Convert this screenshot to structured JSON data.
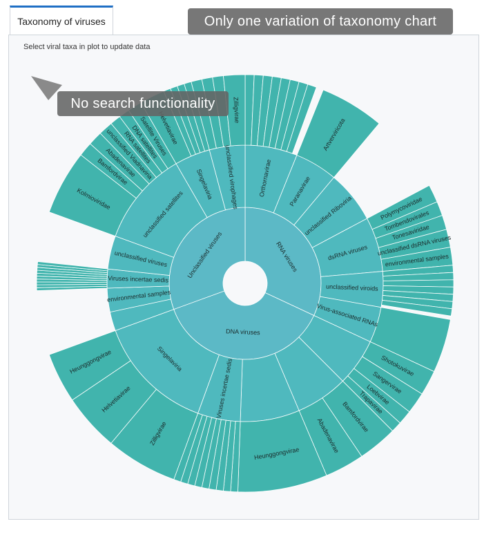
{
  "tab": "Taxonomy of viruses",
  "instruction": "Select viral taxa in plot to update data",
  "annotations": [
    "Only one variation of taxonomy chart",
    "No search functionality"
  ],
  "chart_data": {
    "type": "sunburst",
    "depth_colors": [
      "#5cb9c6",
      "#4fb9be",
      "#41b4ad"
    ],
    "nodes": [
      {
        "name": "RNA viruses",
        "value": 115,
        "children": [
          {
            "name": "Orthornavirae",
            "value": 22,
            "children": [
              {
                "name": null,
                "value": 2.5
              },
              {
                "name": null,
                "value": 2.5
              },
              {
                "name": null,
                "value": 2.5
              },
              {
                "name": null,
                "value": 2.5
              },
              {
                "name": null,
                "value": 2.5
              },
              {
                "name": null,
                "value": 2.5
              },
              {
                "name": null,
                "value": 2.5
              },
              {
                "name": null,
                "value": 2.5
              }
            ]
          },
          {
            "name": "Paranavirae",
            "value": 18,
            "children": [
              {
                "name": "Artverviricota",
                "value": 18
              }
            ]
          },
          {
            "name": "unclassified Riboviria",
            "value": 22
          },
          {
            "name": "dsRNA viruses",
            "value": 23,
            "children": [
              {
                "name": "Polymycoviridae",
                "value": 5
              },
              {
                "name": "Tombendovirales",
                "value": 4
              },
              {
                "name": "Tonesaviridae",
                "value": 4
              },
              {
                "name": "unclassified dsRNA viruses",
                "value": 5
              },
              {
                "name": "environmental samples",
                "value": 5
              }
            ]
          },
          {
            "name": "unclassified viroids",
            "value": 15,
            "children": [
              {
                "name": null,
                "value": 2
              },
              {
                "name": null,
                "value": 2
              },
              {
                "name": null,
                "value": 2
              },
              {
                "name": null,
                "value": 2
              },
              {
                "name": null,
                "value": 2
              },
              {
                "name": null,
                "value": 2
              },
              {
                "name": null,
                "value": 2
              }
            ]
          },
          {
            "name": "Virus-associated RNAs",
            "value": 15,
            "children": [
              {
                "name": null,
                "value": 15
              }
            ]
          }
        ]
      },
      {
        "name": "DNA viruses",
        "value": 135,
        "children": [
          {
            "name": null,
            "value": 20,
            "children": [
              {
                "name": "Shotokuvirae",
                "value": 7
              },
              {
                "name": "Sangervirae",
                "value": 6
              },
              {
                "name": "Loebvirae",
                "value": 4
              },
              {
                "name": "Trapavirae",
                "value": 3
              }
            ]
          },
          {
            "name": null,
            "value": 22,
            "children": [
              {
                "name": "Bamfordvirae",
                "value": 11
              },
              {
                "name": "Abadenavirae",
                "value": 11
              }
            ]
          },
          {
            "name": null,
            "value": 25,
            "children": [
              {
                "name": "Heunggongvirae",
                "value": 25
              }
            ]
          },
          {
            "name": "Viruses incertae sedis",
            "value": 18,
            "children": [
              {
                "name": null,
                "value": 2
              },
              {
                "name": null,
                "value": 2
              },
              {
                "name": null,
                "value": 2
              },
              {
                "name": null,
                "value": 2
              },
              {
                "name": null,
                "value": 2
              },
              {
                "name": null,
                "value": 2
              },
              {
                "name": null,
                "value": 2
              },
              {
                "name": null,
                "value": 2
              },
              {
                "name": null,
                "value": 2
              }
            ]
          },
          {
            "name": "Singelaviria",
            "value": 50,
            "children": [
              {
                "name": "Zilligvirae",
                "value": 20
              },
              {
                "name": "Helvetiavirae",
                "value": 16
              },
              {
                "name": "Heunggongvirae",
                "value": 14
              }
            ]
          }
        ]
      },
      {
        "name": "Unclassified viruses",
        "value": 110,
        "children": [
          {
            "name": null,
            "value": 8
          },
          {
            "name": "environmental samples",
            "value": 10
          },
          {
            "name": "Viruses incertae sedis",
            "value": 8,
            "children": [
              {
                "name": null,
                "value": 0.8
              },
              {
                "name": null,
                "value": 0.8
              },
              {
                "name": null,
                "value": 0.8
              },
              {
                "name": null,
                "value": 0.8
              },
              {
                "name": null,
                "value": 0.8
              },
              {
                "name": null,
                "value": 0.8
              },
              {
                "name": null,
                "value": 0.8
              },
              {
                "name": null,
                "value": 0.8
              },
              {
                "name": null,
                "value": 0.8
              },
              {
                "name": null,
                "value": 0.8
              }
            ]
          },
          {
            "name": "unclassified viruses",
            "value": 14
          },
          {
            "name": "unclassified satellites",
            "value": 40,
            "children": [
              {
                "name": "Kolmioviridae",
                "value": 18
              },
              {
                "name": "Bamfordvirae",
                "value": 4
              },
              {
                "name": "Abadenavirae",
                "value": 4
              },
              {
                "name": "unclassified Viadnaviria",
                "value": 4
              },
              {
                "name": "RNA satellites",
                "value": 3
              },
              {
                "name": "DNA satellites",
                "value": 3
              },
              {
                "name": "Satellite Viruses",
                "value": 4
              }
            ]
          },
          {
            "name": "Singelaviria",
            "value": 15,
            "children": [
              {
                "name": "Helvetiavirae",
                "value": 7
              },
              {
                "name": null,
                "value": 2
              },
              {
                "name": null,
                "value": 2
              },
              {
                "name": null,
                "value": 2
              },
              {
                "name": null,
                "value": 2
              }
            ]
          },
          {
            "name": "unclassified virophages",
            "value": 15,
            "children": [
              {
                "name": null,
                "value": 3
              },
              {
                "name": null,
                "value": 3
              },
              {
                "name": null,
                "value": 3
              },
              {
                "name": "Zilligvirae",
                "value": 6
              }
            ]
          }
        ]
      }
    ]
  }
}
